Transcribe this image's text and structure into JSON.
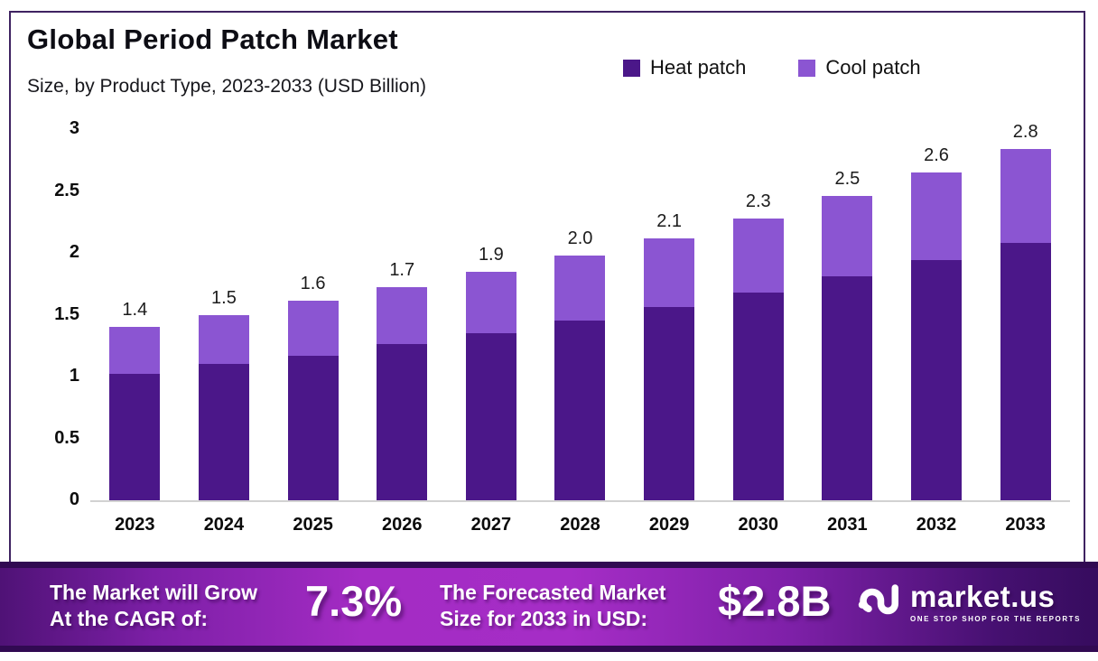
{
  "header": {
    "title": "Global Period Patch Market",
    "subtitle": "Size, by Product Type, 2023-2033 (USD Billion)"
  },
  "legend": [
    {
      "label": "Heat patch",
      "color": "#4b1789"
    },
    {
      "label": "Cool patch",
      "color": "#8b55d2"
    }
  ],
  "chart_data": {
    "type": "bar",
    "stacked": true,
    "title": "Global Period Patch Market Size, by Product Type, 2023-2033 (USD Billion)",
    "categories": [
      "2023",
      "2024",
      "2025",
      "2026",
      "2027",
      "2028",
      "2029",
      "2030",
      "2031",
      "2032",
      "2033"
    ],
    "series": [
      {
        "name": "Heat patch",
        "color": "#4b1789",
        "values": [
          1.02,
          1.1,
          1.17,
          1.26,
          1.35,
          1.45,
          1.56,
          1.68,
          1.81,
          1.94,
          2.08
        ]
      },
      {
        "name": "Cool patch",
        "color": "#8b55d2",
        "values": [
          0.38,
          0.4,
          0.44,
          0.46,
          0.5,
          0.53,
          0.56,
          0.6,
          0.65,
          0.71,
          0.76
        ]
      }
    ],
    "total_labels": [
      "1.4",
      "1.5",
      "1.6",
      "1.7",
      "1.9",
      "2.0",
      "2.1",
      "2.3",
      "2.5",
      "2.6",
      "2.8"
    ],
    "xlabel": "",
    "ylabel": "",
    "ylim": [
      0,
      3
    ],
    "yticks": [
      "0",
      "0.5",
      "1",
      "1.5",
      "2",
      "2.5",
      "3"
    ],
    "grid": false,
    "legend_position": "top-right"
  },
  "footer": {
    "cagr_label_line1": "The Market will Grow",
    "cagr_label_line2": "At the CAGR of:",
    "cagr_value": "7.3%",
    "forecast_label_line1": "The Forecasted Market",
    "forecast_label_line2": "Size for 2033 in USD:",
    "forecast_value": "$2.8B",
    "brand": "market.us",
    "brand_tagline": "ONE STOP SHOP FOR THE REPORTS"
  },
  "colors": {
    "heat_patch": "#4b1789",
    "cool_patch": "#8b55d2",
    "panel_border": "#3f2361",
    "baseline": "#d2d2d2",
    "banner_mid": "#a52dc6",
    "banner_edge": "#360c5e",
    "text": "#111111"
  }
}
